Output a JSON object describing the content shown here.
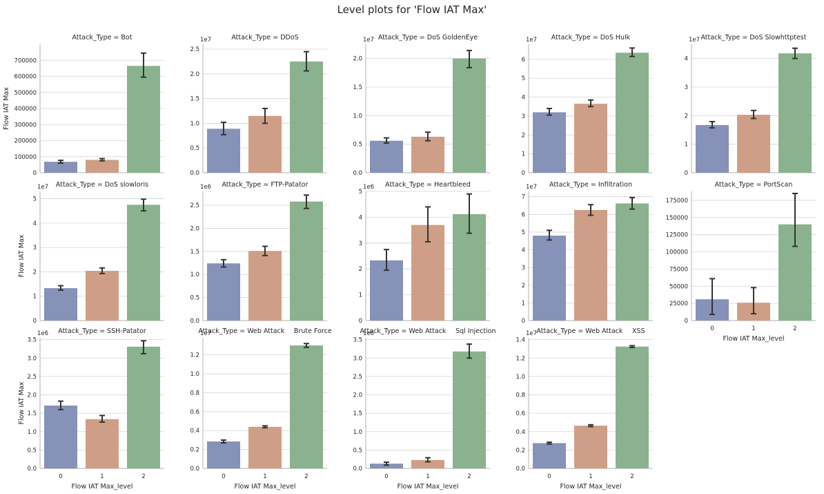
{
  "figure": {
    "title": "Level plots for 'Flow IAT Max'"
  },
  "chart_data": {
    "type": "bar",
    "categories": [
      "0",
      "1",
      "2"
    ],
    "xlabel": "Flow IAT Max_level",
    "ylabel": "Flow IAT Max",
    "grid": true,
    "bar_colors": [
      "#8792b8",
      "#cf9e86",
      "#8bb28e"
    ],
    "panels": [
      {
        "title": "Attack_Type = Bot",
        "scale": "",
        "ylim": [
          0,
          800000
        ],
        "yticks": [
          0,
          100000,
          200000,
          300000,
          400000,
          500000,
          600000,
          700000
        ],
        "yticklabels": [
          "0",
          "100000",
          "200000",
          "300000",
          "400000",
          "500000",
          "600000",
          "700000"
        ],
        "values": [
          68000,
          80000,
          665000
        ],
        "err_low": [
          60000,
          74000,
          595000
        ],
        "err_high": [
          77000,
          88000,
          745000
        ]
      },
      {
        "title": "Attack_Type = DDoS",
        "scale": "1e7",
        "ylim": [
          0,
          2.6
        ],
        "yticks": [
          0,
          0.5,
          1.0,
          1.5,
          2.0,
          2.5
        ],
        "yticklabels": [
          "0.0",
          "0.5",
          "1.0",
          "1.5",
          "2.0",
          "2.5"
        ],
        "values": [
          0.89,
          1.15,
          2.25
        ],
        "err_low": [
          0.77,
          1.0,
          2.06
        ],
        "err_high": [
          1.02,
          1.3,
          2.45
        ]
      },
      {
        "title": "Attack_Type = DoS GoldenEye",
        "scale": "1e7",
        "ylim": [
          0,
          2.25
        ],
        "yticks": [
          0,
          0.5,
          1.0,
          1.5,
          2.0
        ],
        "yticklabels": [
          "0.0",
          "0.5",
          "1.0",
          "1.5",
          "2.0"
        ],
        "values": [
          0.56,
          0.63,
          2.0
        ],
        "err_low": [
          0.52,
          0.56,
          1.84
        ],
        "err_high": [
          0.61,
          0.71,
          2.14
        ]
      },
      {
        "title": "Attack_Type = DoS Hulk",
        "scale": "1e7",
        "ylim": [
          0,
          6.8
        ],
        "yticks": [
          0,
          1,
          2,
          3,
          4,
          5,
          6
        ],
        "yticklabels": [
          "0",
          "1",
          "2",
          "3",
          "4",
          "5",
          "6"
        ],
        "values": [
          3.2,
          3.65,
          6.35
        ],
        "err_low": [
          3.05,
          3.5,
          6.15
        ],
        "err_high": [
          3.4,
          3.85,
          6.6
        ]
      },
      {
        "title": "Attack_Type = DoS Slowhttptest",
        "scale": "1e7",
        "ylim": [
          0,
          4.5
        ],
        "yticks": [
          0,
          1,
          2,
          3,
          4
        ],
        "yticklabels": [
          "0",
          "1",
          "2",
          "3",
          "4"
        ],
        "values": [
          1.67,
          2.03,
          4.18
        ],
        "err_low": [
          1.57,
          1.9,
          4.0
        ],
        "err_high": [
          1.79,
          2.18,
          4.36
        ]
      },
      {
        "title": "Attack_Type = DoS slowloris",
        "scale": "1e7",
        "ylim": [
          0,
          5.3
        ],
        "yticks": [
          0,
          1,
          2,
          3,
          4,
          5
        ],
        "yticklabels": [
          "0",
          "1",
          "2",
          "3",
          "4",
          "5"
        ],
        "values": [
          1.33,
          2.04,
          4.75
        ],
        "err_low": [
          1.25,
          1.93,
          4.5
        ],
        "err_high": [
          1.43,
          2.16,
          4.98
        ]
      },
      {
        "title": "Attack_Type = FTP-Patator",
        "scale": "1e6",
        "ylim": [
          0,
          2.8
        ],
        "yticks": [
          0,
          0.5,
          1.0,
          1.5,
          2.0,
          2.5
        ],
        "yticklabels": [
          "0.0",
          "0.5",
          "1.0",
          "1.5",
          "2.0",
          "2.5"
        ],
        "values": [
          1.24,
          1.51,
          2.58
        ],
        "err_low": [
          1.16,
          1.41,
          2.43
        ],
        "err_high": [
          1.32,
          1.61,
          2.72
        ]
      },
      {
        "title": "Attack_Type = Heartbleed",
        "scale": "1e6",
        "ylim": [
          0,
          5.0
        ],
        "yticks": [
          0,
          1,
          2,
          3,
          4,
          5
        ],
        "yticklabels": [
          "0",
          "1",
          "2",
          "3",
          "4",
          "5"
        ],
        "values": [
          2.33,
          3.7,
          4.12
        ],
        "err_low": [
          1.95,
          3.05,
          3.38
        ],
        "err_high": [
          2.75,
          4.4,
          4.9
        ]
      },
      {
        "title": "Attack_Type = Infiltration",
        "scale": "1e7",
        "ylim": [
          0,
          7.3
        ],
        "yticks": [
          0,
          1,
          2,
          3,
          4,
          5,
          6,
          7
        ],
        "yticklabels": [
          "0",
          "1",
          "2",
          "3",
          "4",
          "5",
          "6",
          "7"
        ],
        "values": [
          4.8,
          6.25,
          6.62
        ],
        "err_low": [
          4.55,
          5.95,
          6.3
        ],
        "err_high": [
          5.1,
          6.55,
          6.95
        ]
      },
      {
        "title": "Attack_Type = PortScan",
        "scale": "",
        "ylim": [
          0,
          188000
        ],
        "yticks": [
          0,
          25000,
          50000,
          75000,
          100000,
          125000,
          150000,
          175000
        ],
        "yticklabels": [
          "0",
          "25000",
          "50000",
          "75000",
          "100000",
          "125000",
          "150000",
          "175000"
        ],
        "values": [
          31000,
          26000,
          140000
        ],
        "err_low": [
          9000,
          10000,
          108000
        ],
        "err_high": [
          61000,
          48000,
          185000
        ]
      },
      {
        "title": "Attack_Type = SSH-Patator",
        "scale": "1e6",
        "ylim": [
          0,
          3.55
        ],
        "yticks": [
          0,
          0.5,
          1.0,
          1.5,
          2.0,
          2.5,
          3.0,
          3.5
        ],
        "yticklabels": [
          "0.0",
          "0.5",
          "1.0",
          "1.5",
          "2.0",
          "2.5",
          "3.0",
          "3.5"
        ],
        "values": [
          1.71,
          1.34,
          3.31
        ],
        "err_low": [
          1.6,
          1.26,
          3.12
        ],
        "err_high": [
          1.83,
          1.44,
          3.47
        ]
      },
      {
        "title": "Attack_Type = Web Attack  Brute Force",
        "scale": "1e7",
        "ylim": [
          0,
          1.38
        ],
        "yticks": [
          0,
          0.2,
          0.4,
          0.6,
          0.8,
          1.0,
          1.2
        ],
        "yticklabels": [
          "0.0",
          "0.2",
          "0.4",
          "0.6",
          "0.8",
          "1.0",
          "1.2"
        ],
        "values": [
          0.285,
          0.44,
          1.3
        ],
        "err_low": [
          0.27,
          0.43,
          1.28
        ],
        "err_high": [
          0.3,
          0.45,
          1.32
        ]
      },
      {
        "title": "Attack_Type = Web Attack  Sql Injection",
        "scale": "1e6",
        "ylim": [
          0,
          3.55
        ],
        "yticks": [
          0,
          0.5,
          1.0,
          1.5,
          2.0,
          2.5,
          3.0,
          3.5
        ],
        "yticklabels": [
          "0.0",
          "0.5",
          "1.0",
          "1.5",
          "2.0",
          "2.5",
          "3.0",
          "3.5"
        ],
        "values": [
          0.13,
          0.23,
          3.18
        ],
        "err_low": [
          0.09,
          0.18,
          3.0
        ],
        "err_high": [
          0.17,
          0.29,
          3.38
        ]
      },
      {
        "title": "Attack_Type = Web Attack  XSS",
        "scale": "1e7",
        "ylim": [
          0,
          1.42
        ],
        "yticks": [
          0,
          0.2,
          0.4,
          0.6,
          0.8,
          1.0,
          1.2,
          1.4
        ],
        "yticklabels": [
          "0.0",
          "0.2",
          "0.4",
          "0.6",
          "0.8",
          "1.0",
          "1.2",
          "1.4"
        ],
        "values": [
          0.275,
          0.465,
          1.325
        ],
        "err_low": [
          0.265,
          0.455,
          1.315
        ],
        "err_high": [
          0.285,
          0.475,
          1.335
        ]
      }
    ]
  }
}
